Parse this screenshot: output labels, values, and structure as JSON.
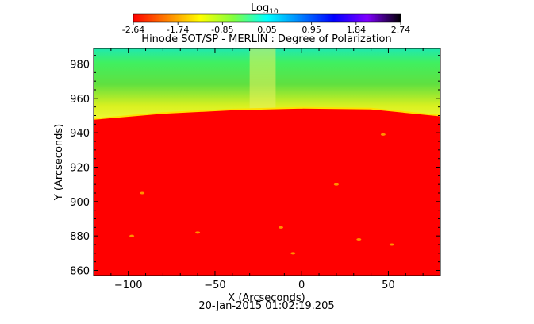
{
  "colorbar": {
    "label": "Log",
    "label_subscript": "10",
    "ticks": [
      "-2.64",
      "-1.74",
      "-0.85",
      "0.05",
      "0.95",
      "1.84",
      "2.74"
    ],
    "colors": [
      "#ff0000",
      "#ff8000",
      "#ffff00",
      "#80ff40",
      "#00ffff",
      "#0080ff",
      "#0000ff",
      "#8000ff",
      "#000000"
    ]
  },
  "chart_data": {
    "type": "heatmap",
    "title": "Hinode SOT/SP - MERLIN : Degree of Polarization",
    "xlabel": "X (Arcseconds)",
    "ylabel": "Y (Arcseconds)",
    "xlim": [
      -120,
      80
    ],
    "ylim": [
      857,
      989
    ],
    "x_ticks": [
      -100,
      -50,
      0,
      50
    ],
    "y_ticks": [
      860,
      880,
      900,
      920,
      940,
      960,
      980
    ],
    "x_tick_labels": [
      "−100",
      "−50",
      "0",
      "50"
    ],
    "y_tick_labels": [
      "860",
      "880",
      "900",
      "920",
      "940",
      "960",
      "980"
    ],
    "limb_y": [
      {
        "x": -120,
        "y": 948
      },
      {
        "x": -80,
        "y": 951.5
      },
      {
        "x": -40,
        "y": 953.5
      },
      {
        "x": 0,
        "y": 954.5
      },
      {
        "x": 40,
        "y": 954
      },
      {
        "x": 80,
        "y": 950
      }
    ],
    "footer": "20-Jan-2015 01:02:19.205"
  }
}
